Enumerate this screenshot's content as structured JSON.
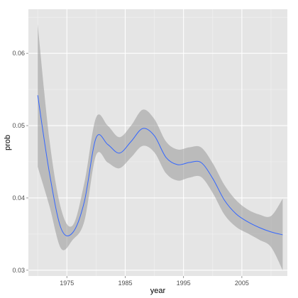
{
  "chart_data": {
    "type": "line",
    "xlabel": "year",
    "ylabel": "prob",
    "xlim": [
      1968.4,
      2012.8
    ],
    "ylim": [
      0.0292,
      0.0661
    ],
    "x_ticks": [
      1975,
      1985,
      1995,
      2005
    ],
    "x_tick_labels": [
      "1975",
      "1985",
      "1995",
      "2005"
    ],
    "y_ticks": [
      0.03,
      0.04,
      0.05,
      0.06
    ],
    "y_tick_labels": [
      "0.03",
      "0.04",
      "0.05",
      "0.06"
    ],
    "grid": true,
    "legend": "none",
    "series": [
      {
        "x": [
          1970,
          1972,
          1974,
          1976,
          1978,
          1980,
          1982,
          1984,
          1986,
          1988,
          1990,
          1992,
          1994,
          1996,
          1998,
          2000,
          2002,
          2004,
          2006,
          2008,
          2010,
          2012
        ],
        "y": [
          0.0542,
          0.0435,
          0.0358,
          0.0352,
          0.0395,
          0.0483,
          0.0474,
          0.0462,
          0.0478,
          0.0496,
          0.0486,
          0.0456,
          0.0446,
          0.0449,
          0.0449,
          0.0427,
          0.0397,
          0.0378,
          0.0367,
          0.0359,
          0.0353,
          0.0349
        ],
        "ymin": [
          0.0443,
          0.0389,
          0.033,
          0.0342,
          0.0368,
          0.0459,
          0.0449,
          0.0441,
          0.0456,
          0.0472,
          0.0463,
          0.0434,
          0.0424,
          0.0428,
          0.0429,
          0.0407,
          0.0377,
          0.036,
          0.0351,
          0.0342,
          0.0332,
          0.03
        ],
        "ymax": [
          0.064,
          0.0481,
          0.0385,
          0.0362,
          0.0421,
          0.0511,
          0.05,
          0.0484,
          0.05,
          0.0522,
          0.0509,
          0.0478,
          0.0467,
          0.047,
          0.047,
          0.0448,
          0.0418,
          0.0397,
          0.0384,
          0.0377,
          0.0375,
          0.0399
        ]
      }
    ]
  },
  "colors": {
    "panel_background": "#e5e5e5",
    "grid_major": "#ffffff",
    "grid_minor": "#f2f2f2",
    "line": "#3366ff",
    "ribbon": "#999999"
  }
}
